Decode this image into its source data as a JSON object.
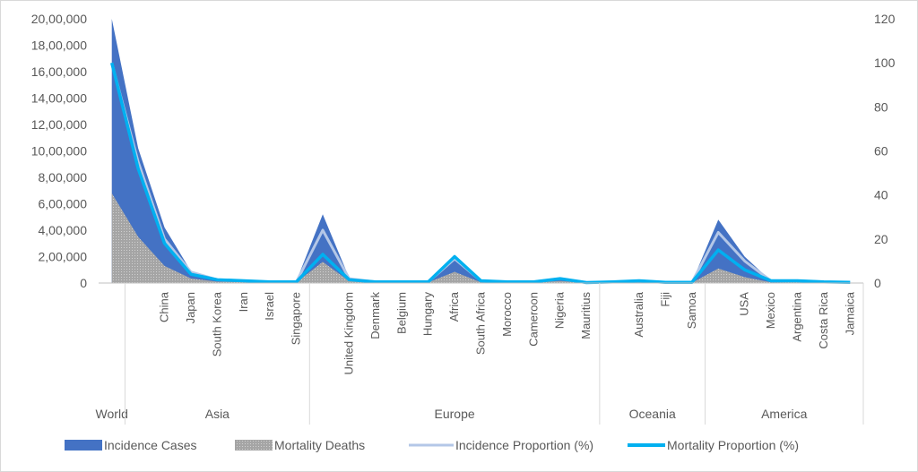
{
  "chart_data": {
    "type": "area",
    "categories": [
      "World",
      "",
      "China",
      "Japan",
      "South Korea",
      "Iran",
      "Israel",
      "Singapore",
      "",
      "United Kingdom",
      "Denmark",
      "Belgium",
      "Hungary",
      "Africa",
      "South Africa",
      "Morocco",
      "Cameroon",
      "Nigeria",
      "Mauritius",
      "",
      "Australia",
      "Fiji",
      "Samoa",
      "",
      "USA",
      "Mexico",
      "Argentina",
      "Costa Rica",
      "Jamaica"
    ],
    "groups": [
      {
        "label": "World",
        "start": 0,
        "end": 0
      },
      {
        "label": "Asia",
        "start": 1,
        "end": 7
      },
      {
        "label": "Europe",
        "start": 8,
        "end": 18
      },
      {
        "label": "Oceania",
        "start": 19,
        "end": 22
      },
      {
        "label": "America",
        "start": 23,
        "end": 28
      }
    ],
    "series": [
      {
        "name": "Incidence Cases",
        "axis": "left",
        "kind": "area",
        "color": "#4472c4",
        "values": [
          2000000,
          1020000,
          420000,
          90000,
          25000,
          20000,
          15000,
          15000,
          520000,
          40000,
          15000,
          10000,
          15000,
          210000,
          15000,
          10000,
          5000,
          40000,
          5000,
          10000,
          15000,
          5000,
          5000,
          480000,
          200000,
          15000,
          20000,
          10000,
          5000
        ]
      },
      {
        "name": "Mortality Deaths",
        "axis": "left",
        "kind": "area",
        "color": "#a5a5a5",
        "values": [
          680000,
          350000,
          130000,
          35000,
          10000,
          8000,
          5000,
          5000,
          160000,
          15000,
          5000,
          5000,
          5000,
          85000,
          5000,
          5000,
          3000,
          15000,
          2000,
          3000,
          5000,
          2000,
          2000,
          110000,
          45000,
          5000,
          8000,
          3000,
          2000
        ]
      },
      {
        "name": "Incidence Proportion (%)",
        "axis": "right",
        "kind": "line",
        "color": "#b4c7e7",
        "values": [
          100,
          55,
          20,
          5,
          1.5,
          1,
          0.5,
          0.5,
          24,
          2,
          0.5,
          0.5,
          0.5,
          11,
          1,
          0.5,
          0.5,
          2,
          0.2,
          0.5,
          1,
          0.3,
          0.3,
          23,
          10,
          1,
          1,
          0.5,
          0.3
        ]
      },
      {
        "name": "Mortality Proportion (%)",
        "axis": "right",
        "kind": "line",
        "color": "#00b0f0",
        "values": [
          100,
          52,
          18,
          4,
          1.5,
          1,
          0.5,
          0.5,
          13,
          1.5,
          0.5,
          0.5,
          0.5,
          12,
          1,
          0.5,
          0.5,
          2,
          0.2,
          0.5,
          1,
          0.3,
          0.3,
          15,
          6,
          1,
          1,
          0.5,
          0.3
        ]
      }
    ],
    "y_left": {
      "min": 0,
      "max": 2000000,
      "ticks": [
        "0",
        "2,00,000",
        "4,00,000",
        "6,00,000",
        "8,00,000",
        "10,00,000",
        "12,00,000",
        "14,00,000",
        "16,00,000",
        "18,00,000",
        "20,00,000"
      ]
    },
    "y_right": {
      "min": 0,
      "max": 120,
      "ticks": [
        "0",
        "20",
        "40",
        "60",
        "80",
        "100",
        "120"
      ]
    },
    "legend": {
      "placement": "bottom"
    },
    "grid": false
  }
}
